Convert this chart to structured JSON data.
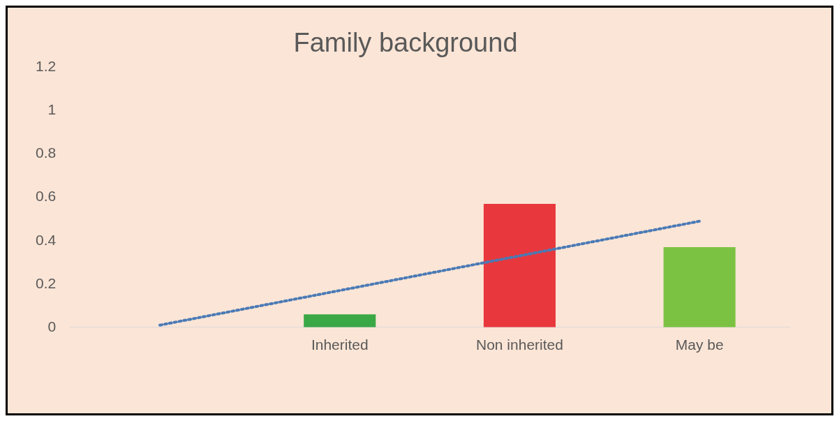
{
  "chart_data": {
    "type": "bar",
    "title": "Family background",
    "categories": [
      null,
      "Inherited",
      "Non inherited",
      "May be"
    ],
    "series": [
      {
        "colors": [
          "#3aa845",
          "#3aa845",
          "#e8383d",
          "#7cc242"
        ],
        "values": [
          0,
          0.06,
          0.57,
          0.37
        ]
      },
      {
        "type": "line",
        "color": "#4a7ab5",
        "line_style": "dotted",
        "marker": "none",
        "values": [
          0.01,
          0.17,
          0.33,
          0.49
        ]
      }
    ],
    "ylim": [
      0,
      1.2
    ],
    "yticks": [
      0,
      0.2,
      0.4,
      0.6,
      0.8,
      1,
      1.2
    ],
    "grid": false,
    "legend": false
  }
}
